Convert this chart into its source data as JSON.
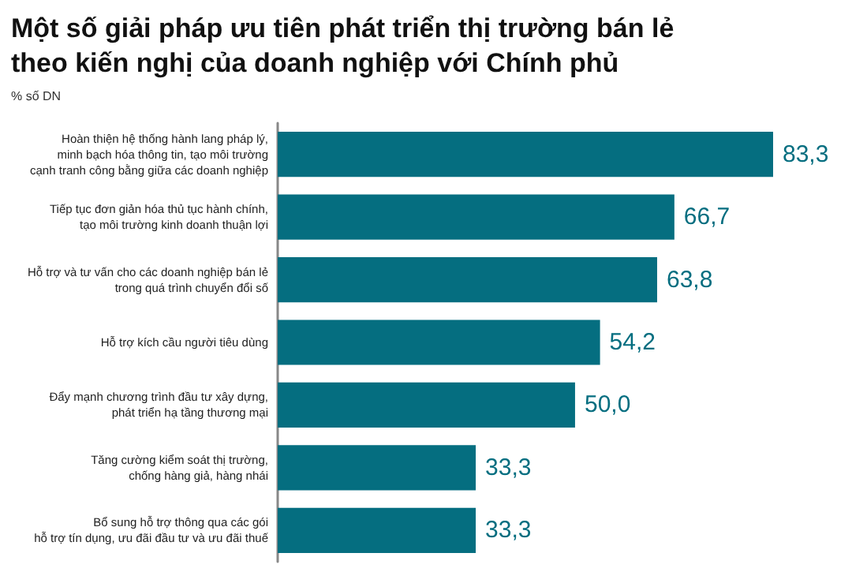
{
  "chart_data": {
    "type": "bar",
    "orientation": "horizontal",
    "title": "Một số giải pháp ưu tiên phát triển thị trường bán lẻ\ntheo kiến nghị của doanh nghiệp với Chính phủ",
    "subtitle": "% số DN",
    "categories": [
      "Hoàn thiện hệ thống hành lang pháp lý,\nminh bạch hóa thông tin, tạo môi trường\ncạnh tranh công bằng giữa các doanh nghiệp",
      "Tiếp tục đơn giản hóa thủ tục hành chính,\ntạo môi trường kinh doanh thuận lợi",
      "Hỗ trợ và tư vấn cho các doanh nghiệp bán lẻ\ntrong quá trình chuyển đổi số",
      "Hỗ trợ kích cầu người tiêu dùng",
      "Đẩy mạnh chương trình đầu tư xây dựng,\nphát triển hạ tầng thương mại",
      "Tăng cường kiểm soát thị trường,\nchống hàng giả, hàng nhái",
      "Bổ sung hỗ trợ thông qua các gói\nhỗ trợ tín dụng, ưu đãi đầu tư và ưu đãi thuế"
    ],
    "values": [
      83.3,
      66.7,
      63.8,
      54.2,
      50.0,
      33.3,
      33.3
    ],
    "value_labels": [
      "83,3",
      "66,7",
      "63,8",
      "54,2",
      "50,0",
      "33,3",
      "33,3"
    ],
    "color": "#056e80"
  }
}
